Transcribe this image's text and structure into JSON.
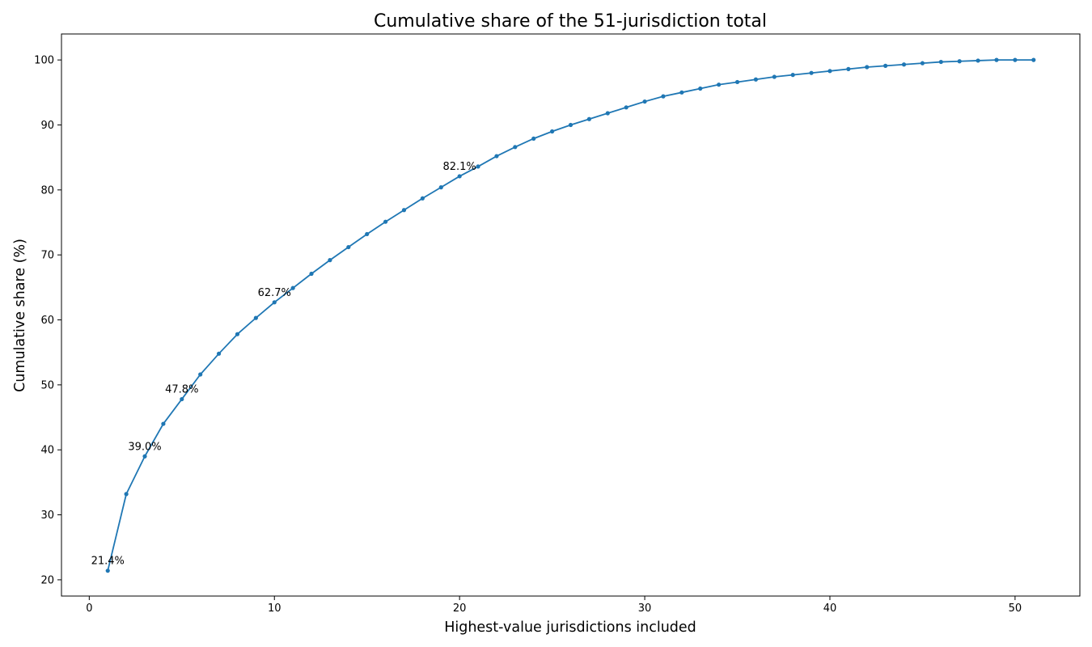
{
  "chart_data": {
    "type": "line",
    "title": "Cumulative share of the 51-jurisdiction total",
    "xlabel": "Highest-value jurisdictions included",
    "ylabel": "Cumulative share (%)",
    "xlim": [
      -1.5,
      53.5
    ],
    "ylim": [
      17.5,
      104
    ],
    "xticks": [
      0,
      10,
      20,
      30,
      40,
      50
    ],
    "yticks": [
      20,
      30,
      40,
      50,
      60,
      70,
      80,
      90,
      100
    ],
    "grid": false,
    "legend": "none",
    "color": "#1f77b4",
    "series": [
      {
        "marker": "circle",
        "x": [
          1,
          2,
          3,
          4,
          5,
          6,
          7,
          8,
          9,
          10,
          11,
          12,
          13,
          14,
          15,
          16,
          17,
          18,
          19,
          20,
          21,
          22,
          23,
          24,
          25,
          26,
          27,
          28,
          29,
          30,
          31,
          32,
          33,
          34,
          35,
          36,
          37,
          38,
          39,
          40,
          41,
          42,
          43,
          44,
          45,
          46,
          47,
          48,
          49,
          50,
          51
        ],
        "y": [
          21.4,
          33.2,
          39.0,
          44.0,
          47.8,
          51.6,
          54.8,
          57.8,
          60.3,
          62.7,
          64.9,
          67.1,
          69.2,
          71.2,
          73.2,
          75.1,
          76.9,
          78.7,
          80.4,
          82.1,
          83.6,
          85.2,
          86.6,
          87.9,
          89.0,
          90.0,
          90.9,
          91.8,
          92.7,
          93.6,
          94.4,
          95.0,
          95.6,
          96.2,
          96.6,
          97.0,
          97.4,
          97.7,
          98.0,
          98.3,
          98.6,
          98.9,
          99.1,
          99.3,
          99.5,
          99.7,
          99.8,
          99.9,
          100.0,
          100.0,
          100.0
        ]
      }
    ],
    "annotations": [
      {
        "x": 1,
        "y": 21.4,
        "text": "21.4%"
      },
      {
        "x": 3,
        "y": 39.0,
        "text": "39.0%"
      },
      {
        "x": 5,
        "y": 47.8,
        "text": "47.8%"
      },
      {
        "x": 10,
        "y": 62.7,
        "text": "62.7%"
      },
      {
        "x": 20,
        "y": 82.1,
        "text": "82.1%"
      }
    ]
  }
}
